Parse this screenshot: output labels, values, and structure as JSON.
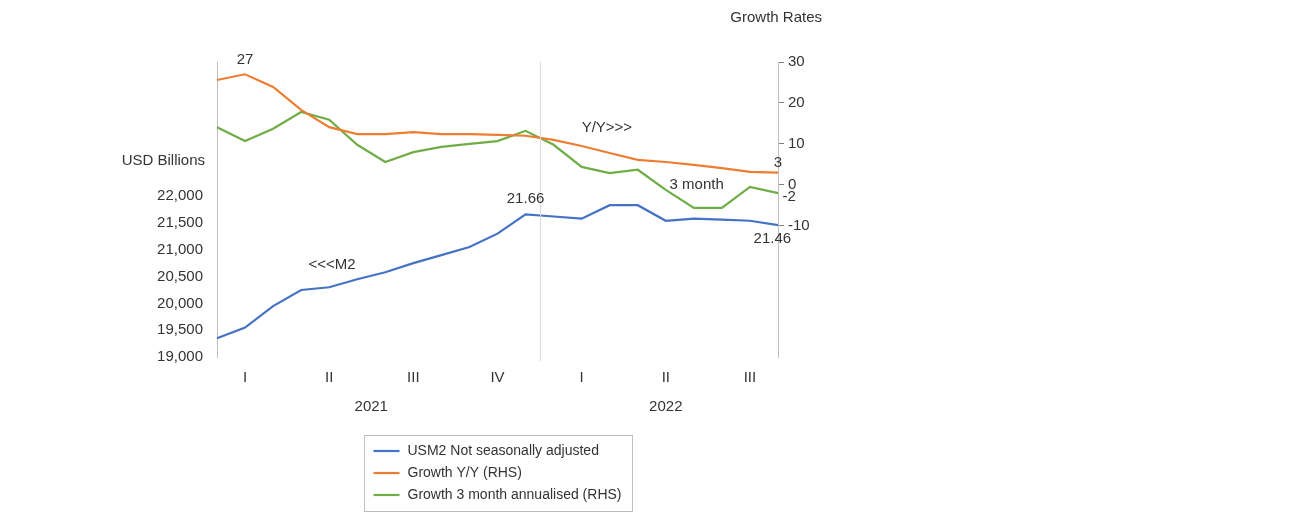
{
  "chart_data": {
    "type": "line",
    "y_label": "USD Billions",
    "y2_label": "Growth Rates",
    "categories": [
      null,
      "I",
      null,
      null,
      "II",
      null,
      null,
      "III",
      null,
      null,
      "IV",
      null,
      null,
      "I",
      null,
      null,
      "II",
      null,
      null,
      "III",
      null
    ],
    "x_groups": [
      {
        "label": "2021",
        "from": 0,
        "to": 11
      },
      {
        "label": "2022",
        "from": 12,
        "to": 20
      }
    ],
    "series": [
      {
        "name": "USM2 Not seasonally adjusted",
        "color": "#4472c4",
        "axis": "y",
        "values": [
          19350,
          19550,
          19950,
          20250,
          20300,
          20450,
          20580,
          20750,
          20900,
          21050,
          21300,
          21660,
          21620,
          21580,
          21830,
          21830,
          21540,
          21580,
          21560,
          21540,
          21460
        ]
      },
      {
        "name": "Growth Y/Y (RHS)",
        "color": "#ed7d31",
        "axis": "y2",
        "values": [
          25.6,
          27,
          23.9,
          18.3,
          14.1,
          12.4,
          12.4,
          12.9,
          12.4,
          12.4,
          12.2,
          12.0,
          11.0,
          9.5,
          7.8,
          6.1,
          5.6,
          4.9,
          4.1,
          3.2,
          3
        ]
      },
      {
        "name": "Growth 3 month annualised (RHS)",
        "color": "#70ad47",
        "axis": "y2",
        "values": [
          14.1,
          10.7,
          13.7,
          17.8,
          15.9,
          9.8,
          5.6,
          8.0,
          9.3,
          10.0,
          10.7,
          13.2,
          9.8,
          4.4,
          2.9,
          3.7,
          -1.2,
          -5.6,
          -5.6,
          -0.5,
          -2
        ]
      }
    ],
    "ylim": [
      19000,
      24500
    ],
    "yticks": [
      {
        "value": 19000,
        "label": "19,000"
      },
      {
        "value": 19500,
        "label": "19,500"
      },
      {
        "value": 20000,
        "label": "20,000"
      },
      {
        "value": 20500,
        "label": "20,500"
      },
      {
        "value": 21000,
        "label": "21,000"
      },
      {
        "value": 21500,
        "label": "21,500"
      },
      {
        "value": 22000,
        "label": "22,000"
      }
    ],
    "y2lim": [
      -42,
      30
    ],
    "y2ticks": [
      -10,
      0,
      10,
      20,
      30
    ],
    "annotations": [
      {
        "text": "27",
        "x": 1,
        "y": 30.5,
        "axis": "y2"
      },
      {
        "text": "21.66",
        "x": 11,
        "y": 21950,
        "axis": "y"
      },
      {
        "text": "<<<M2",
        "x": 4.1,
        "y": 20720,
        "axis": "y"
      },
      {
        "text": "Y/Y>>>",
        "x": 13.9,
        "y": 13.9,
        "axis": "y2"
      },
      {
        "text": "3 month",
        "x": 17.1,
        "y": 0,
        "axis": "y2"
      },
      {
        "text": "3",
        "x": 20,
        "y": 5.5,
        "axis": "y2"
      },
      {
        "text": "-2",
        "x": 20.4,
        "y": -2.9,
        "axis": "y2"
      },
      {
        "text": "21.46",
        "x": 19.8,
        "y": 21200,
        "axis": "y"
      }
    ],
    "grid": false,
    "legend": "bottom"
  }
}
